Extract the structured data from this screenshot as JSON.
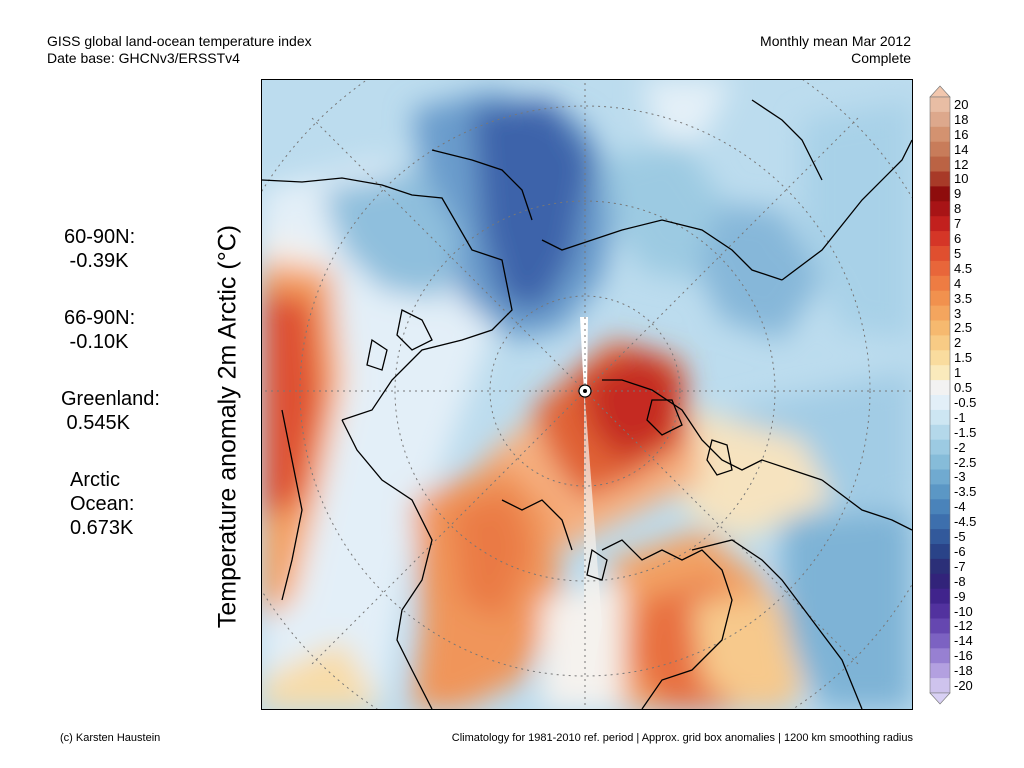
{
  "header": {
    "line1_left": "GISS global land-ocean temperature index",
    "line2_left": "Date base: GHCNv3/ERSSTv4",
    "line1_right": "Monthly mean Mar 2012",
    "line2_right": "Complete"
  },
  "axis_label": "Temperature anomaly 2m Arctic (°C)",
  "stats": [
    {
      "lines": [
        "60-90N:",
        " -0.39K"
      ]
    },
    {
      "lines": [
        "66-90N:",
        " -0.10K"
      ]
    },
    {
      "lines": [
        "Greenland:",
        " 0.545K"
      ]
    },
    {
      "lines": [
        "Arctic",
        "Ocean:",
        "0.673K"
      ]
    }
  ],
  "colorbar": {
    "levels": [
      "20",
      "18",
      "16",
      "14",
      "12",
      "10",
      "9",
      "8",
      "7",
      "6",
      "5",
      "4.5",
      "4",
      "3.5",
      "3",
      "2.5",
      "2",
      "1.5",
      "1",
      "0.5",
      "-0.5",
      "-1",
      "-1.5",
      "-2",
      "-2.5",
      "-3",
      "-3.5",
      "-4",
      "-4.5",
      "-5",
      "-6",
      "-7",
      "-8",
      "-9",
      "-10",
      "-12",
      "-14",
      "-16",
      "-18",
      "-20"
    ],
    "colors": [
      "#e8bda4",
      "#dda88c",
      "#d39270",
      "#c87c5a",
      "#bb6344",
      "#a83a28",
      "#8e0d0d",
      "#a81416",
      "#c2201e",
      "#d53627",
      "#e04f2f",
      "#e8663a",
      "#ee7c43",
      "#f1914e",
      "#f4a55e",
      "#f6b96f",
      "#f8cb85",
      "#f9dc9e",
      "#faeabc",
      "#f2f2f2",
      "#e2eff8",
      "#cde6f2",
      "#b4d8ea",
      "#9ccae2",
      "#86bcd9",
      "#70aad0",
      "#5b97c5",
      "#4a83ba",
      "#3d6fad",
      "#32599b",
      "#2a4388",
      "#2b2f78",
      "#32237a",
      "#40248c",
      "#52329e",
      "#6547b0",
      "#7c62c2",
      "#9780d2",
      "#b3a0e0",
      "#cec3ed"
    ],
    "top_arrow_color": "#f2c7ae",
    "bottom_arrow_color": "#d8d0f4"
  },
  "footer": {
    "left": "(c) Karsten Haustein",
    "right": "Climatology for 1981-2010 ref. period | Approx. grid box anomalies | 1200 km smoothing radius"
  },
  "map": {
    "projection": "north polar stereographic",
    "variable": "2m temperature anomaly",
    "no_data_color": "#ffffff"
  }
}
